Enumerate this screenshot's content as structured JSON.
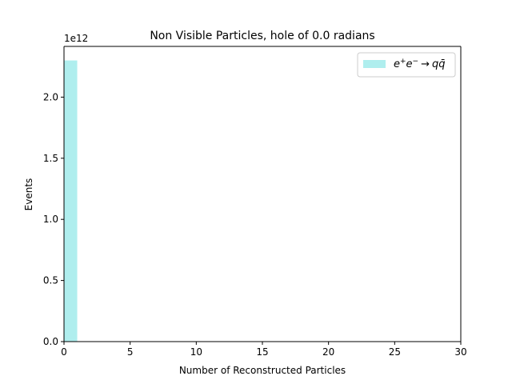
{
  "chart_data": {
    "type": "bar",
    "title": "Non Visible Particles, hole of 0.0 radians",
    "xlabel": "Number of Reconstructed Particles",
    "ylabel": "Events",
    "y_offset_label": "1e12",
    "y_scale_factor": 1000000000000.0,
    "xlim": [
      0,
      30
    ],
    "ylim": [
      0,
      2415000000000.0
    ],
    "xticks": [
      0,
      5,
      10,
      15,
      20,
      25,
      30
    ],
    "xtick_labels": [
      "0",
      "5",
      "10",
      "15",
      "20",
      "25",
      "30"
    ],
    "yticks": [
      0,
      500000000000.0,
      1000000000000.0,
      1500000000000.0,
      2000000000000.0
    ],
    "ytick_labels": [
      "0.0",
      "0.5",
      "1.0",
      "1.5",
      "2.0"
    ],
    "grid": false,
    "legend_position": "top-right",
    "series": [
      {
        "name": "e+e- → qq̄",
        "color": "#afeeee",
        "bins": [
          {
            "x0": 0,
            "x1": 1,
            "value": 2300000000000.0
          }
        ]
      }
    ]
  }
}
